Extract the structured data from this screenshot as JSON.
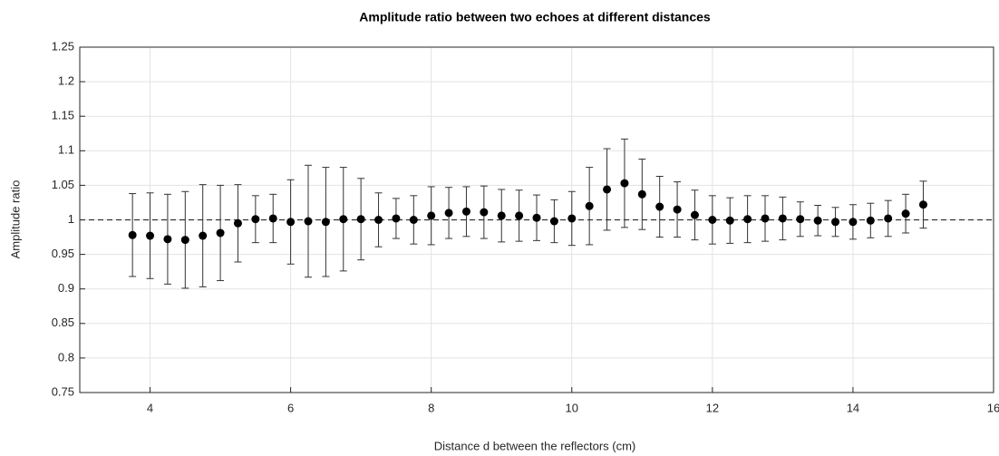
{
  "chart_data": {
    "type": "errorbar",
    "title": "Amplitude ratio between two echoes at different distances",
    "xlabel": "Distance d between the reflectors (cm)",
    "ylabel": "Amplitude ratio",
    "xlim": [
      3,
      16
    ],
    "xticks": [
      4,
      6,
      8,
      10,
      12,
      14,
      16
    ],
    "ylim": [
      0.75,
      1.25
    ],
    "yticks": [
      0.75,
      0.8,
      0.85,
      0.9,
      0.95,
      1,
      1.05,
      1.1,
      1.15,
      1.2,
      1.25
    ],
    "grid": true,
    "hline": 1,
    "x": [
      3.75,
      4,
      4.25,
      4.5,
      4.75,
      5,
      5.25,
      5.5,
      5.75,
      6,
      6.25,
      6.5,
      6.75,
      7,
      7.25,
      7.5,
      7.75,
      8,
      8.25,
      8.5,
      8.75,
      9,
      9.25,
      9.5,
      9.75,
      10,
      10.25,
      10.5,
      10.75,
      11,
      11.25,
      11.5,
      11.75,
      12,
      12.25,
      12.5,
      12.75,
      13,
      13.25,
      13.5,
      13.75,
      14,
      14.25,
      14.5,
      14.75,
      15
    ],
    "series": [
      {
        "color": "#000000",
        "values": [
          0.978,
          0.977,
          0.972,
          0.971,
          0.977,
          0.981,
          0.995,
          1.001,
          1.002,
          0.997,
          0.998,
          0.997,
          1.001,
          1.001,
          1.0,
          1.002,
          1.0,
          1.006,
          1.01,
          1.012,
          1.011,
          1.006,
          1.006,
          1.003,
          0.998,
          1.002,
          1.02,
          1.044,
          1.053,
          1.037,
          1.019,
          1.015,
          1.007,
          1.0,
          0.999,
          1.001,
          1.002,
          1.002,
          1.001,
          0.999,
          0.997,
          0.997,
          0.999,
          1.002,
          1.009,
          1.022
        ],
        "errors": [
          0.06,
          0.062,
          0.065,
          0.07,
          0.074,
          0.069,
          0.056,
          0.034,
          0.035,
          0.061,
          0.081,
          0.079,
          0.075,
          0.059,
          0.039,
          0.029,
          0.035,
          0.042,
          0.037,
          0.036,
          0.038,
          0.038,
          0.037,
          0.033,
          0.031,
          0.039,
          0.056,
          0.059,
          0.064,
          0.051,
          0.044,
          0.04,
          0.036,
          0.035,
          0.033,
          0.034,
          0.033,
          0.031,
          0.025,
          0.022,
          0.021,
          0.025,
          0.025,
          0.026,
          0.028,
          0.034
        ]
      }
    ]
  }
}
